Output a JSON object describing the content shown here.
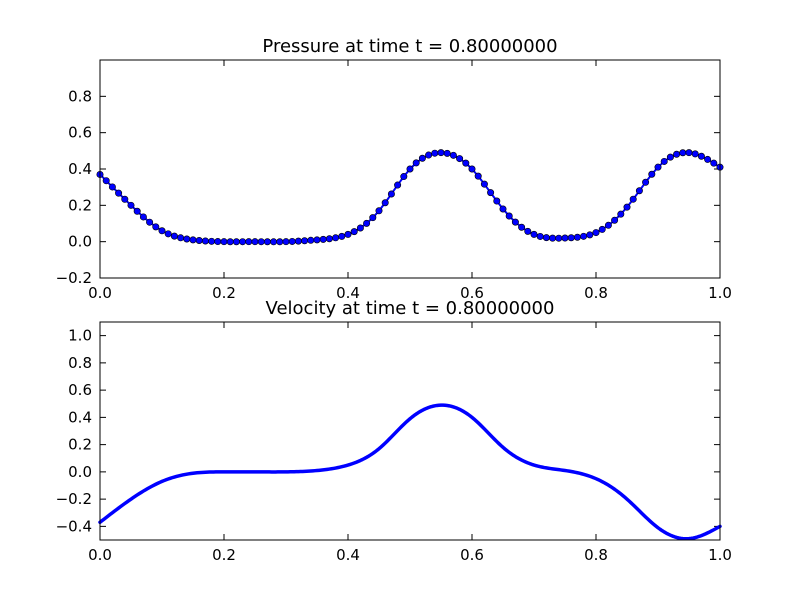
{
  "chart_data": [
    {
      "type": "line",
      "title": "Pressure at time t =     0.80000000",
      "xlabel": "",
      "ylabel": "",
      "xlim": [
        0.0,
        1.0
      ],
      "ylim": [
        -0.2,
        1.0
      ],
      "xticks": [
        0.0,
        0.2,
        0.4,
        0.6,
        0.8,
        1.0
      ],
      "xtick_labels": [
        "0.0",
        "0.2",
        "0.4",
        "0.6",
        "0.8",
        "1.0"
      ],
      "yticks": [
        -0.2,
        0.0,
        0.2,
        0.4,
        0.6,
        0.8
      ],
      "ytick_labels": [
        "−0.2",
        "0.0",
        "0.2",
        "0.4",
        "0.6",
        "0.8"
      ],
      "grid": false,
      "color": "#0000ff",
      "markers": true,
      "series": [
        {
          "x": [
            0.0,
            0.05,
            0.1,
            0.15,
            0.2,
            0.25,
            0.3,
            0.35,
            0.4,
            0.45,
            0.5,
            0.55,
            0.6,
            0.65,
            0.7,
            0.75,
            0.8,
            0.85,
            0.9,
            0.95,
            1.0
          ],
          "values": [
            0.37,
            0.2,
            0.06,
            0.01,
            0.0,
            0.0,
            0.0,
            0.01,
            0.04,
            0.17,
            0.4,
            0.49,
            0.4,
            0.18,
            0.04,
            0.02,
            0.05,
            0.19,
            0.41,
            0.49,
            0.41
          ]
        }
      ]
    },
    {
      "type": "line",
      "title": "Velocity at time t =     0.80000000",
      "xlabel": "",
      "ylabel": "",
      "xlim": [
        0.0,
        1.0
      ],
      "ylim": [
        -0.5,
        1.1
      ],
      "xticks": [
        0.0,
        0.2,
        0.4,
        0.6,
        0.8,
        1.0
      ],
      "xtick_labels": [
        "0.0",
        "0.2",
        "0.4",
        "0.6",
        "0.8",
        "1.0"
      ],
      "yticks": [
        -0.4,
        -0.2,
        0.0,
        0.2,
        0.4,
        0.6,
        0.8,
        1.0
      ],
      "ytick_labels": [
        "−0.4",
        "−0.2",
        "0.0",
        "0.2",
        "0.4",
        "0.6",
        "0.8",
        "1.0"
      ],
      "grid": false,
      "color": "#0000ff",
      "markers": false,
      "series": [
        {
          "x": [
            0.0,
            0.05,
            0.1,
            0.15,
            0.2,
            0.25,
            0.3,
            0.35,
            0.4,
            0.45,
            0.5,
            0.55,
            0.6,
            0.65,
            0.7,
            0.75,
            0.8,
            0.85,
            0.9,
            0.95,
            1.0
          ],
          "values": [
            -0.37,
            -0.2,
            -0.07,
            -0.01,
            0.0,
            0.0,
            0.0,
            0.01,
            0.05,
            0.17,
            0.39,
            0.49,
            0.4,
            0.18,
            0.05,
            0.01,
            -0.05,
            -0.2,
            -0.41,
            -0.49,
            -0.4
          ]
        }
      ]
    }
  ]
}
